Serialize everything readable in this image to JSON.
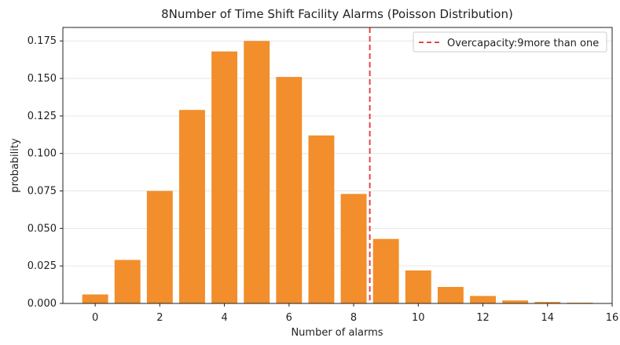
{
  "chart_data": {
    "type": "bar",
    "title": "8Number of Time Shift Facility Alarms (Poisson Distribution)",
    "xlabel": "Number of alarms",
    "ylabel": "probability",
    "x": [
      0,
      1,
      2,
      3,
      4,
      5,
      6,
      7,
      8,
      9,
      10,
      11,
      12,
      13,
      14,
      15
    ],
    "values": [
      0.006,
      0.029,
      0.075,
      0.129,
      0.168,
      0.175,
      0.151,
      0.112,
      0.073,
      0.043,
      0.022,
      0.011,
      0.005,
      0.002,
      0.001,
      0.0005
    ],
    "xlim": [
      -1,
      16
    ],
    "ylim": [
      0,
      0.184
    ],
    "xticks": [
      0,
      2,
      4,
      6,
      8,
      10,
      12,
      14,
      16
    ],
    "yticks": [
      0.0,
      0.025,
      0.05,
      0.075,
      0.1,
      0.125,
      0.15,
      0.175
    ],
    "xtick_labels": [
      "0",
      "2",
      "4",
      "6",
      "8",
      "10",
      "12",
      "14",
      "16"
    ],
    "ytick_labels": [
      "0.000",
      "0.025",
      "0.050",
      "0.075",
      "0.100",
      "0.125",
      "0.150",
      "0.175"
    ],
    "bar_color": "#f28e2b",
    "grid": "horizontal",
    "threshold": {
      "x": 8.5,
      "label": "Overcapacity:9more than one",
      "color": "#e64545",
      "style": "dashed"
    },
    "legend": {
      "position": "top-right",
      "entries": [
        "Overcapacity:9more than one"
      ]
    }
  }
}
